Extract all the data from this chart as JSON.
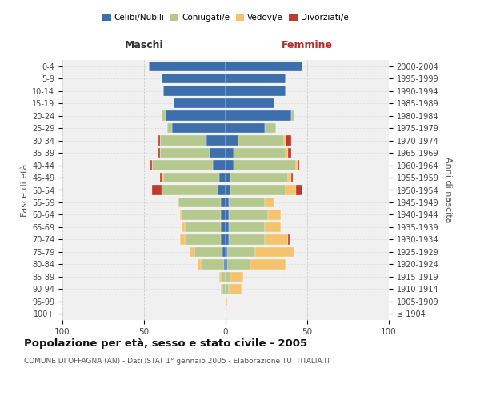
{
  "age_groups": [
    "100+",
    "95-99",
    "90-94",
    "85-89",
    "80-84",
    "75-79",
    "70-74",
    "65-69",
    "60-64",
    "55-59",
    "50-54",
    "45-49",
    "40-44",
    "35-39",
    "30-34",
    "25-29",
    "20-24",
    "15-19",
    "10-14",
    "5-9",
    "0-4"
  ],
  "birth_years": [
    "≤ 1904",
    "1905-1909",
    "1910-1914",
    "1915-1919",
    "1920-1924",
    "1925-1929",
    "1930-1934",
    "1935-1939",
    "1940-1944",
    "1945-1949",
    "1950-1954",
    "1955-1959",
    "1960-1964",
    "1965-1969",
    "1970-1974",
    "1975-1979",
    "1980-1984",
    "1985-1989",
    "1990-1994",
    "1995-1999",
    "2000-2004"
  ],
  "male": {
    "celibi": [
      0,
      0,
      0,
      0,
      1,
      2,
      3,
      3,
      3,
      3,
      5,
      4,
      8,
      10,
      12,
      33,
      37,
      32,
      38,
      39,
      47
    ],
    "coniugati": [
      0,
      0,
      2,
      3,
      14,
      17,
      22,
      22,
      24,
      26,
      34,
      34,
      37,
      30,
      28,
      3,
      2,
      0,
      0,
      0,
      0
    ],
    "vedovi": [
      0,
      0,
      1,
      1,
      2,
      3,
      3,
      2,
      1,
      0,
      0,
      1,
      0,
      0,
      0,
      0,
      0,
      0,
      0,
      0,
      0
    ],
    "divorziati": [
      0,
      0,
      0,
      0,
      0,
      0,
      0,
      0,
      0,
      0,
      6,
      1,
      1,
      1,
      1,
      0,
      0,
      0,
      0,
      0,
      0
    ]
  },
  "female": {
    "nubili": [
      0,
      0,
      0,
      0,
      1,
      1,
      2,
      2,
      2,
      2,
      3,
      3,
      5,
      5,
      8,
      24,
      40,
      30,
      37,
      37,
      47
    ],
    "coniugate": [
      0,
      0,
      2,
      3,
      14,
      17,
      22,
      22,
      24,
      22,
      34,
      35,
      38,
      32,
      28,
      7,
      2,
      0,
      0,
      0,
      0
    ],
    "vedove": [
      0,
      1,
      8,
      8,
      22,
      24,
      14,
      10,
      8,
      6,
      6,
      2,
      1,
      1,
      1,
      0,
      0,
      0,
      0,
      0,
      0
    ],
    "divorziate": [
      0,
      0,
      0,
      0,
      0,
      0,
      1,
      0,
      0,
      0,
      4,
      1,
      1,
      2,
      3,
      0,
      0,
      0,
      0,
      0,
      0
    ]
  },
  "colors": {
    "celibi": "#3d6fad",
    "coniugati": "#b5c98e",
    "vedovi": "#f5c36e",
    "divorziati": "#c0392b"
  },
  "xlim": 100,
  "title": "Popolazione per età, sesso e stato civile - 2005",
  "subtitle": "COMUNE DI OFFAGNA (AN) - Dati ISTAT 1° gennaio 2005 - Elaborazione TUTTITALIA.IT",
  "ylabel_left": "Fasce di età",
  "ylabel_right": "Anni di nascita",
  "xlabel_left": "Maschi",
  "xlabel_right": "Femmine",
  "bg_color": "#f0f0f0",
  "fig_bg": "#ffffff"
}
